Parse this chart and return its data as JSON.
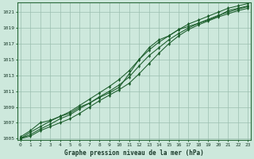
{
  "xlabel": "Graphe pression niveau de la mer (hPa)",
  "background_color": "#cde8dc",
  "grid_color": "#9bbfb0",
  "line_color": "#1a5c2a",
  "yticks": [
    1005,
    1007,
    1009,
    1011,
    1013,
    1015,
    1017,
    1019,
    1021
  ],
  "xticks": [
    0,
    1,
    2,
    3,
    4,
    5,
    6,
    7,
    8,
    9,
    10,
    11,
    12,
    13,
    14,
    15,
    16,
    17,
    18,
    19,
    20,
    21,
    22,
    23
  ],
  "line1_x": [
    0,
    1,
    2,
    3,
    4,
    5,
    6,
    7,
    8,
    9,
    10,
    11,
    12,
    13,
    14,
    15,
    16,
    17,
    18,
    19,
    20,
    21,
    22,
    23
  ],
  "line1": [
    1005.2,
    1006.0,
    1007.0,
    1007.3,
    1007.8,
    1008.2,
    1009.0,
    1009.5,
    1010.2,
    1010.8,
    1011.5,
    1013.2,
    1015.0,
    1016.5,
    1017.5,
    1018.0,
    1018.8,
    1019.2,
    1019.6,
    1020.0,
    1020.5,
    1021.2,
    1021.5,
    1021.8
  ],
  "line2_x": [
    0,
    1,
    2,
    3,
    4,
    5,
    6,
    7,
    8,
    9,
    10,
    11,
    12,
    13,
    14,
    15,
    16,
    17,
    18,
    19,
    20,
    21,
    22,
    23
  ],
  "line2": [
    1005.0,
    1005.8,
    1006.5,
    1007.2,
    1007.8,
    1008.4,
    1009.2,
    1010.0,
    1010.8,
    1011.6,
    1012.5,
    1013.6,
    1015.0,
    1016.2,
    1017.2,
    1018.0,
    1018.8,
    1019.5,
    1020.0,
    1020.5,
    1021.0,
    1021.5,
    1021.8,
    1022.1
  ],
  "line3_x": [
    0,
    1,
    2,
    3,
    4,
    5,
    6,
    7,
    8,
    9,
    10,
    11,
    12,
    13,
    14,
    15,
    16,
    17,
    18,
    19,
    20,
    21,
    22,
    23
  ],
  "line3": [
    1005.0,
    1005.5,
    1006.2,
    1006.8,
    1007.5,
    1008.0,
    1008.8,
    1009.5,
    1010.3,
    1011.0,
    1011.8,
    1012.8,
    1014.2,
    1015.5,
    1016.5,
    1017.5,
    1018.3,
    1019.0,
    1019.6,
    1020.1,
    1020.6,
    1021.0,
    1021.4,
    1021.7
  ],
  "line4_x": [
    0,
    1,
    2,
    3,
    4,
    5,
    6,
    7,
    8,
    9,
    10,
    11,
    12,
    13,
    14,
    15,
    16,
    17,
    18,
    19,
    20,
    21,
    22,
    23
  ],
  "line4": [
    1005.0,
    1005.3,
    1006.0,
    1006.5,
    1007.0,
    1007.5,
    1008.2,
    1009.0,
    1009.8,
    1010.5,
    1011.2,
    1012.0,
    1013.2,
    1014.5,
    1015.8,
    1017.0,
    1018.0,
    1018.8,
    1019.4,
    1019.9,
    1020.4,
    1020.8,
    1021.2,
    1021.5
  ],
  "xlim": [
    -0.3,
    23.3
  ],
  "ylim": [
    1004.8,
    1022.2
  ],
  "figsize": [
    3.2,
    2.0
  ],
  "dpi": 100
}
